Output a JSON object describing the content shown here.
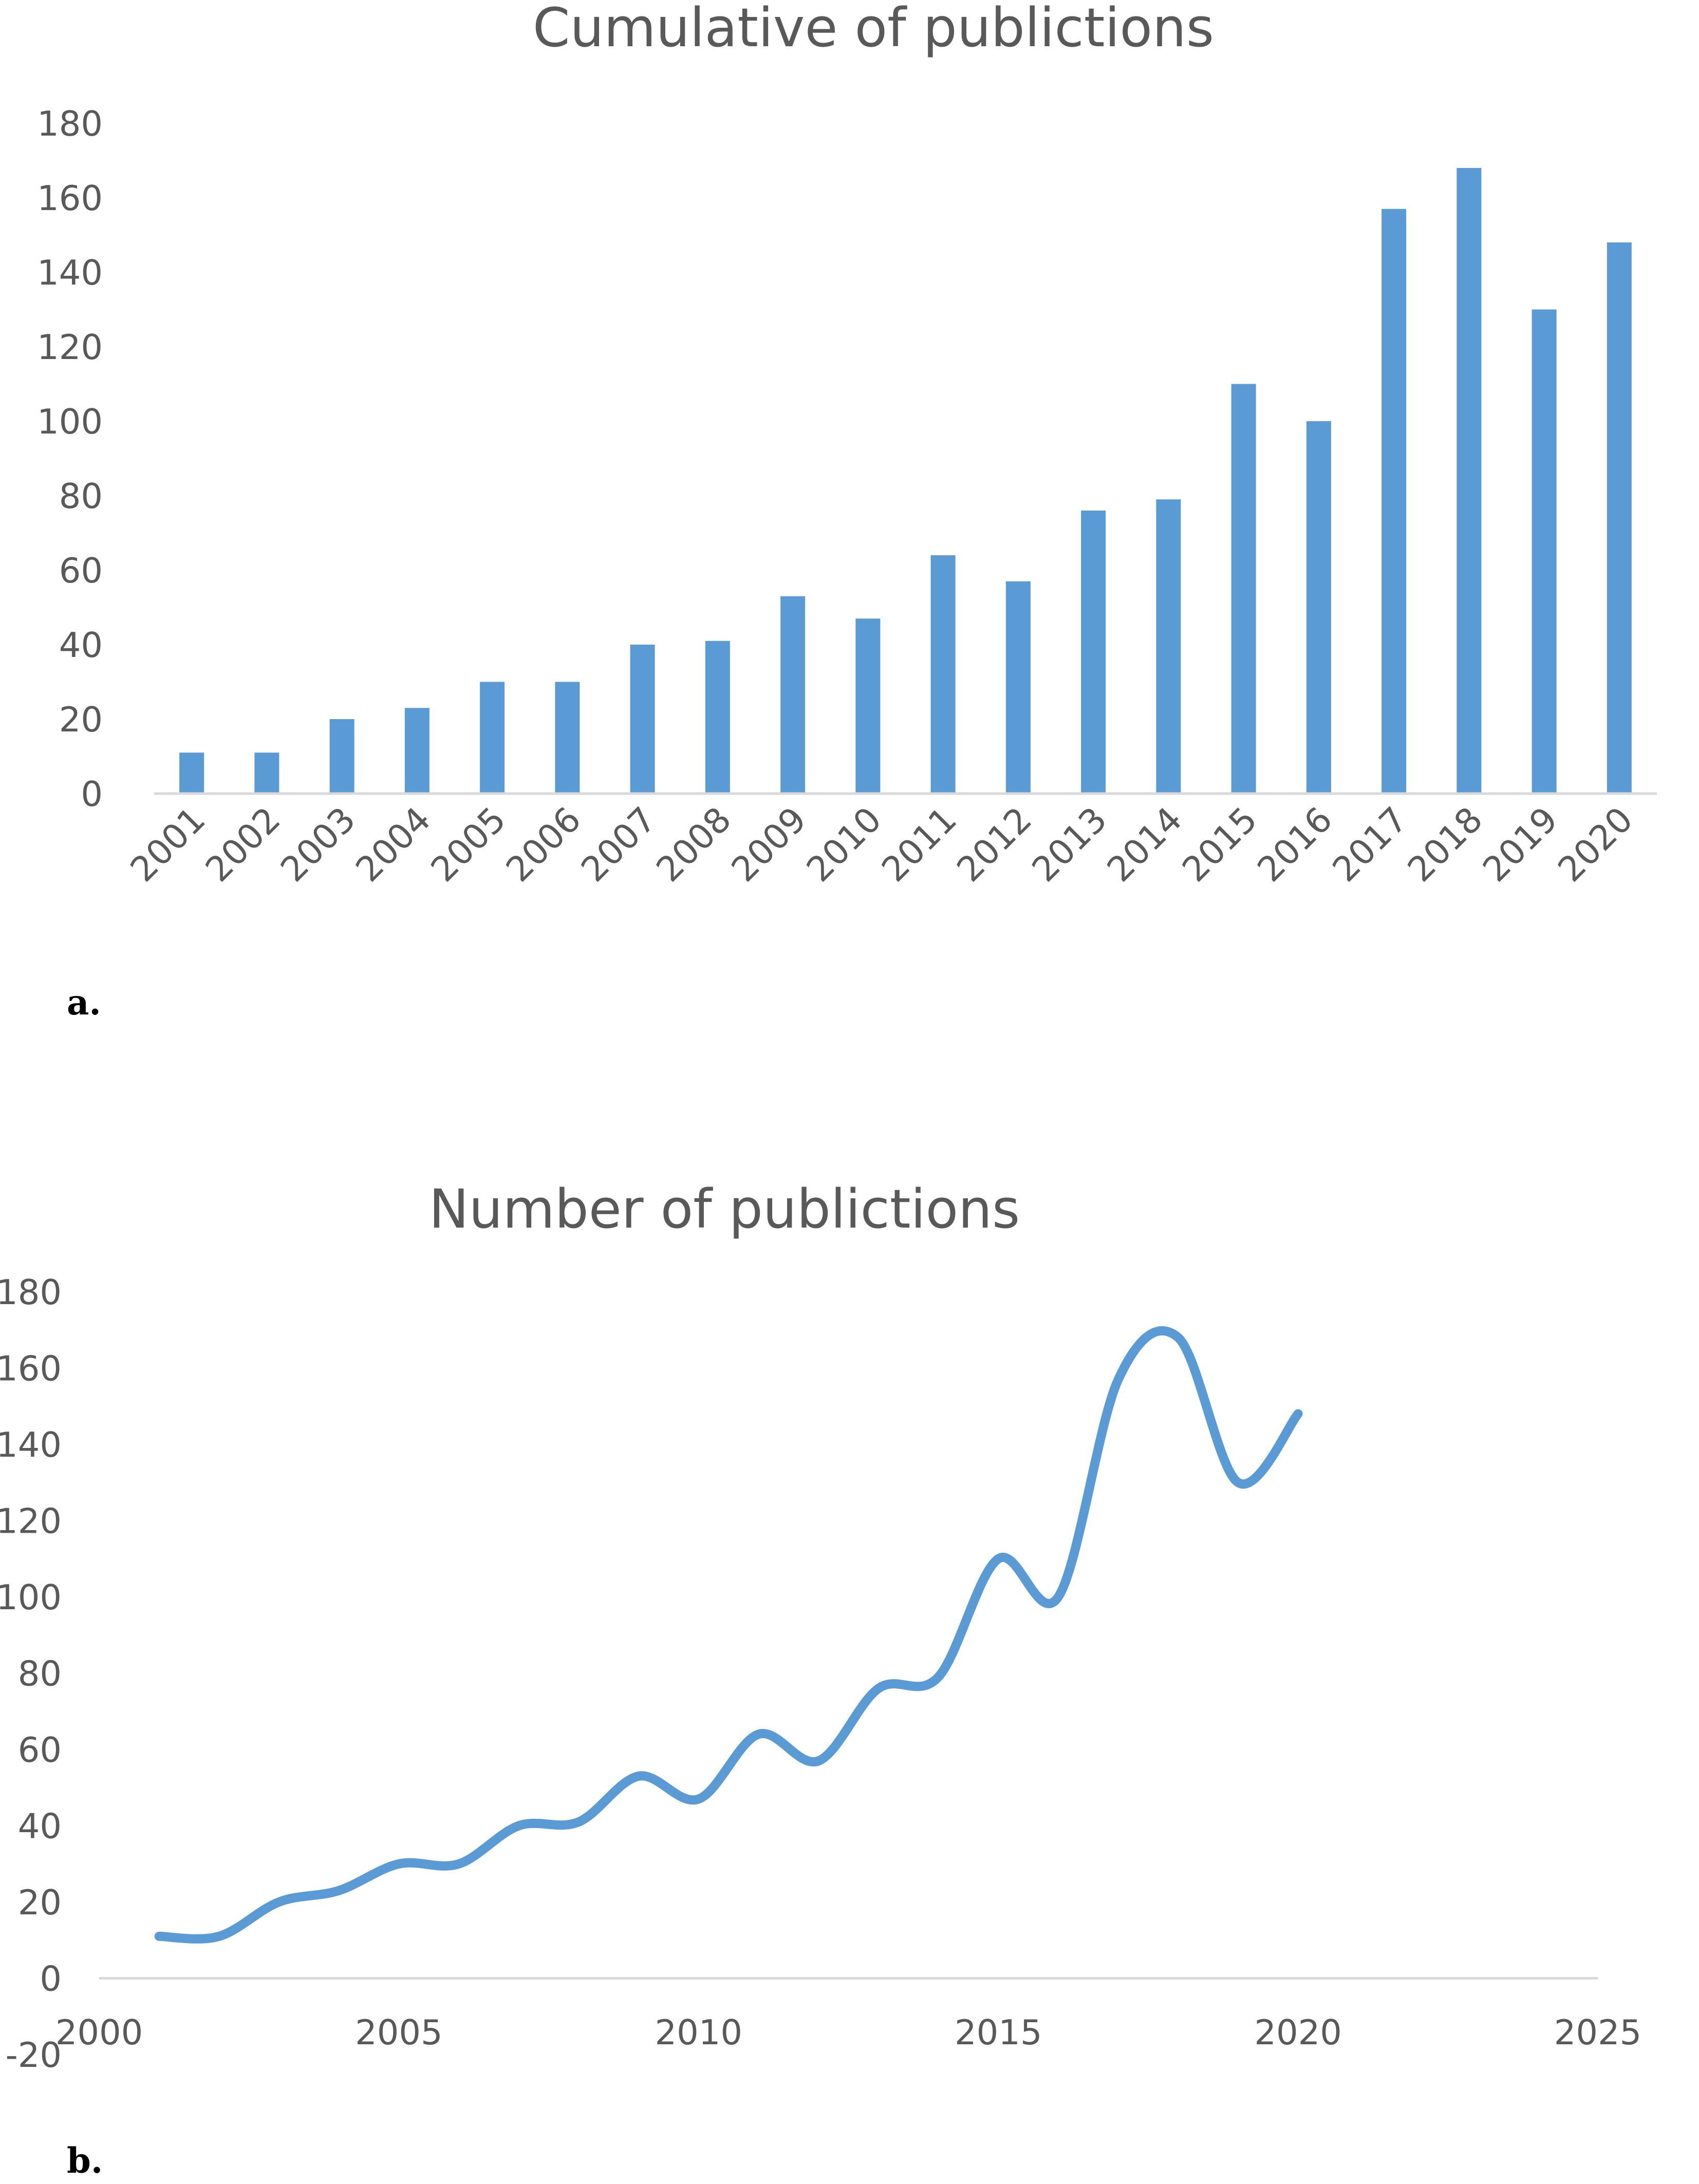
{
  "panels": {
    "a": {
      "label": "a."
    },
    "b": {
      "label": "b."
    }
  },
  "colors": {
    "series": "#5b9bd5",
    "text": "#595959",
    "axis": "#d9d9d9"
  },
  "chart_data": [
    {
      "type": "bar",
      "title": "Cumulative of  publictions",
      "xlabel": "",
      "ylabel": "",
      "categories": [
        "2001",
        "2002",
        "2003",
        "2004",
        "2005",
        "2006",
        "2007",
        "2008",
        "2009",
        "2010",
        "2011",
        "2012",
        "2013",
        "2014",
        "2015",
        "2016",
        "2017",
        "2018",
        "2019",
        "2020"
      ],
      "values": [
        11,
        11,
        20,
        23,
        30,
        30,
        40,
        41,
        53,
        47,
        64,
        57,
        76,
        79,
        110,
        100,
        157,
        168,
        130,
        148
      ],
      "ylim": [
        0,
        180
      ],
      "yticks": [
        0,
        20,
        40,
        60,
        80,
        100,
        120,
        140,
        160,
        180
      ],
      "grid": false,
      "legend": "none"
    },
    {
      "type": "line",
      "smooth": true,
      "title": "Number of publictions",
      "xlabel": "",
      "ylabel": "",
      "x": [
        2001,
        2002,
        2003,
        2004,
        2005,
        2006,
        2007,
        2008,
        2009,
        2010,
        2011,
        2012,
        2013,
        2014,
        2015,
        2016,
        2017,
        2018,
        2019,
        2020
      ],
      "y": [
        11,
        11,
        20,
        23,
        30,
        30,
        40,
        41,
        53,
        47,
        64,
        57,
        76,
        79,
        110,
        100,
        157,
        168,
        130,
        148
      ],
      "xlim": [
        2000,
        2025
      ],
      "xticks": [
        2000,
        2005,
        2010,
        2015,
        2020,
        2025
      ],
      "ylim": [
        -20,
        180
      ],
      "yticks": [
        -20,
        0,
        20,
        40,
        60,
        80,
        100,
        120,
        140,
        160,
        180
      ],
      "grid": false,
      "legend": "none"
    }
  ]
}
